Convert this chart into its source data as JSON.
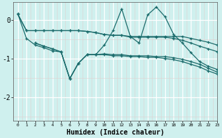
{
  "xlabel": "Humidex (Indice chaleur)",
  "bg_color": "#cff0ee",
  "line_color": "#1a6b6b",
  "xlim": [
    -0.5,
    23
  ],
  "ylim": [
    -2.6,
    0.45
  ],
  "yticks": [
    0,
    -1,
    -2
  ],
  "xticks": [
    0,
    1,
    2,
    3,
    4,
    5,
    6,
    7,
    8,
    9,
    10,
    11,
    12,
    13,
    14,
    15,
    16,
    17,
    18,
    19,
    20,
    21,
    22,
    23
  ],
  "line1_x": [
    0,
    1,
    2,
    3,
    4,
    5,
    6,
    7,
    8,
    9,
    10,
    11,
    12,
    13,
    14,
    15,
    16,
    17,
    18,
    19,
    20,
    21,
    22,
    23
  ],
  "line1_y": [
    0.15,
    -0.28,
    -0.28,
    -0.28,
    -0.28,
    -0.28,
    -0.28,
    -0.28,
    -0.3,
    -0.33,
    -0.38,
    -0.4,
    -0.4,
    -0.43,
    -0.43,
    -0.43,
    -0.43,
    -0.43,
    -0.43,
    -0.43,
    -0.48,
    -0.53,
    -0.58,
    -0.65
  ],
  "line2_x": [
    0,
    1,
    2,
    3,
    4,
    5,
    6,
    7,
    8,
    9,
    10,
    11,
    12,
    13,
    14,
    15,
    16,
    17,
    18,
    19,
    20,
    21,
    22,
    23
  ],
  "line2_y": [
    0.15,
    -0.28,
    -0.28,
    -0.28,
    -0.28,
    -0.28,
    -0.28,
    -0.28,
    -0.3,
    -0.33,
    -0.38,
    -0.4,
    -0.4,
    -0.45,
    -0.45,
    -0.45,
    -0.45,
    -0.45,
    -0.48,
    -0.53,
    -0.6,
    -0.68,
    -0.75,
    -0.82
  ],
  "line3_x": [
    0,
    1,
    2,
    3,
    4,
    5,
    6,
    7,
    8,
    9,
    10,
    11,
    12,
    13,
    14,
    15,
    16,
    17,
    18,
    19,
    20,
    21,
    22,
    23
  ],
  "line3_y": [
    0.15,
    -0.48,
    -0.65,
    -0.72,
    -0.8,
    -0.83,
    -1.52,
    -1.12,
    -0.9,
    -0.9,
    -0.65,
    -0.28,
    0.28,
    -0.43,
    -0.6,
    0.13,
    0.33,
    0.08,
    -0.38,
    -0.6,
    -0.85,
    -1.08,
    -1.2,
    -1.28
  ],
  "line4_x": [
    2,
    3,
    4,
    5,
    6,
    7,
    8,
    9,
    10,
    11,
    12,
    13,
    14,
    15,
    16,
    17,
    18,
    19,
    20,
    21,
    22,
    23
  ],
  "line4_y": [
    -0.6,
    -0.68,
    -0.75,
    -0.83,
    -1.52,
    -1.12,
    -0.9,
    -0.9,
    -0.88,
    -0.9,
    -0.9,
    -0.93,
    -0.93,
    -0.93,
    -0.95,
    -0.95,
    -0.98,
    -1.02,
    -1.08,
    -1.15,
    -1.25,
    -1.35
  ],
  "line5_x": [
    2,
    3,
    4,
    5,
    6,
    7,
    8,
    9,
    10,
    11,
    12,
    13,
    14,
    15,
    16,
    17,
    18,
    19,
    20,
    21,
    22,
    23
  ],
  "line5_y": [
    -0.6,
    -0.68,
    -0.75,
    -0.83,
    -1.52,
    -1.12,
    -0.9,
    -0.9,
    -0.9,
    -0.93,
    -0.93,
    -0.95,
    -0.95,
    -0.97,
    -0.97,
    -1.0,
    -1.03,
    -1.08,
    -1.15,
    -1.22,
    -1.32,
    -1.4
  ]
}
